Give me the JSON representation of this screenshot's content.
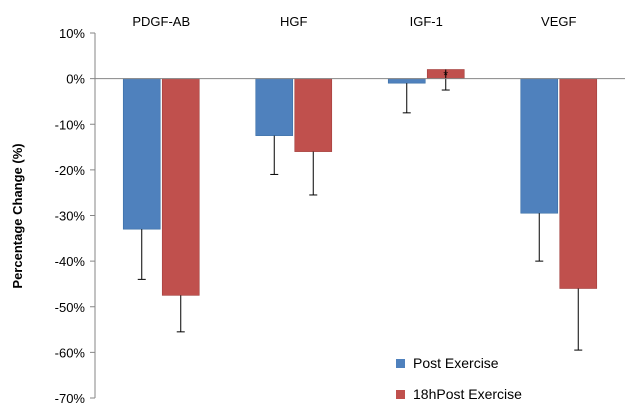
{
  "chart_data": {
    "type": "bar",
    "categories": [
      "PDGF-AB",
      "HGF",
      "IGF-1",
      "VEGF"
    ],
    "series": [
      {
        "name": "Post Exercise",
        "color": "#4f81bd",
        "values": [
          -33,
          -12.5,
          -1,
          -29.5
        ],
        "errors": [
          11,
          8.5,
          6.5,
          10.5
        ]
      },
      {
        "name": "18hPost Exercise",
        "color": "#c0504d",
        "values": [
          -47.5,
          -16,
          2,
          -46
        ],
        "errors": [
          8,
          9.5,
          4.5,
          13.5
        ]
      }
    ],
    "ylabel": "Percentage Change (%)",
    "ylim": [
      -70,
      10
    ],
    "yticks": [
      "10%",
      "0%",
      "-10%",
      "-20%",
      "-30%",
      "-40%",
      "-50%",
      "-60%",
      "-70%"
    ],
    "ytick_values": [
      10,
      0,
      -10,
      -20,
      -30,
      -40,
      -50,
      -60,
      -70
    ],
    "annotation": "*",
    "legend_position": "bottom-right",
    "grid": false
  }
}
